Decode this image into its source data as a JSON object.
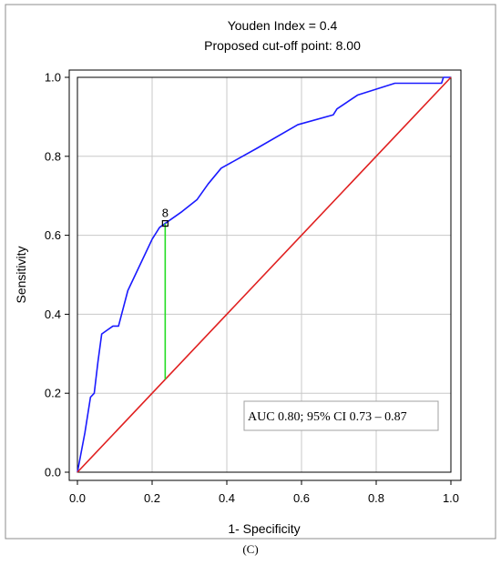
{
  "header": {
    "title_line1": "Youden Index  = 0.4",
    "title_line2": "Proposed cut-off point: 8.00"
  },
  "caption": "(C)",
  "chart_data": {
    "type": "line",
    "xlabel": "1- Specificity",
    "ylabel": "Sensitivity",
    "xlim": [
      0,
      1
    ],
    "ylim": [
      0,
      1
    ],
    "x_ticks": [
      "0.0",
      "0.2",
      "0.4",
      "0.6",
      "0.8",
      "1.0"
    ],
    "y_ticks": [
      "0.0",
      "0.2",
      "0.4",
      "0.6",
      "0.8",
      "1.0"
    ],
    "grid": true,
    "series": [
      {
        "color": "#1a1aff",
        "points": [
          [
            0.0,
            0.0
          ],
          [
            0.02,
            0.1
          ],
          [
            0.035,
            0.19
          ],
          [
            0.045,
            0.2
          ],
          [
            0.055,
            0.28
          ],
          [
            0.065,
            0.35
          ],
          [
            0.08,
            0.36
          ],
          [
            0.095,
            0.37
          ],
          [
            0.11,
            0.37
          ],
          [
            0.135,
            0.46
          ],
          [
            0.17,
            0.53
          ],
          [
            0.2,
            0.59
          ],
          [
            0.22,
            0.62
          ],
          [
            0.235,
            0.63
          ],
          [
            0.28,
            0.66
          ],
          [
            0.32,
            0.69
          ],
          [
            0.35,
            0.73
          ],
          [
            0.385,
            0.77
          ],
          [
            0.48,
            0.82
          ],
          [
            0.59,
            0.88
          ],
          [
            0.685,
            0.905
          ],
          [
            0.695,
            0.92
          ],
          [
            0.75,
            0.955
          ],
          [
            0.85,
            0.985
          ],
          [
            0.95,
            0.985
          ],
          [
            0.975,
            0.985
          ],
          [
            0.98,
            1.0
          ],
          [
            1.0,
            1.0
          ]
        ]
      },
      {
        "color": "#e02020",
        "points": [
          [
            0,
            0
          ],
          [
            1,
            1
          ]
        ]
      }
    ],
    "cutoff": {
      "label": "8",
      "x": 0.235,
      "y": 0.63,
      "y_reference": 0.235,
      "marker_color": "#000000",
      "youden_line_color": "#22dd22"
    },
    "annotation": "AUC  0.80; 95% CI 0.73 – 0.87"
  }
}
